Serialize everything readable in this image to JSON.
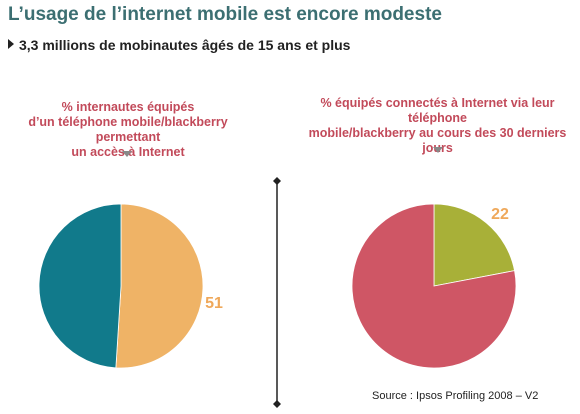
{
  "header": {
    "title": "L’usage de l’internet mobile est encore modeste",
    "subtitle": "3,3 millions de mobinautes âgés de 15 ans et plus"
  },
  "footer": {
    "source": "Source : Ipsos Profiling 2008 – V2"
  },
  "chart_data": [
    {
      "type": "pie",
      "title": "% internautes équipés\nd’un téléphone mobile/blackberry permettant\nun accès à Internet",
      "values": [
        51,
        49
      ],
      "labels": [
        "51",
        ""
      ],
      "colors": [
        "#efb366",
        "#117a8b"
      ]
    },
    {
      "type": "pie",
      "title": "% équipés connectés à Internet via leur téléphone\nmobile/blackberry au cours des 30 derniers jours",
      "values": [
        22,
        78
      ],
      "labels": [
        "22",
        ""
      ],
      "colors": [
        "#a8b038",
        "#cf5665"
      ]
    }
  ]
}
